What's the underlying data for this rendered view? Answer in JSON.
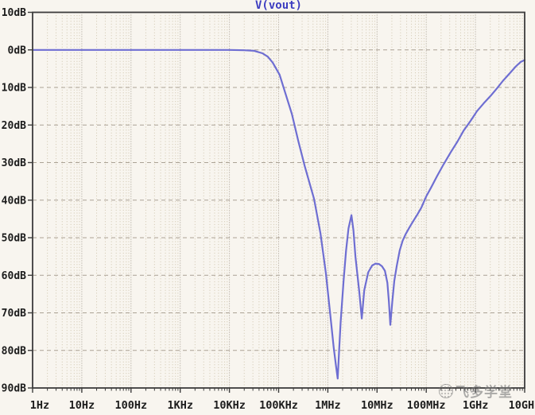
{
  "title": {
    "text": "V(vout)",
    "color": "#3c3cc0"
  },
  "watermark": {
    "text": "飞多学堂",
    "logo": "circle-badge-logo"
  },
  "colors": {
    "background": "#f8f5ef",
    "plot_border": "#3c3c3c",
    "grid_minor": "#cfc5ad",
    "grid_major": "#a49b8d",
    "grid_horizontal": "#aba295",
    "tick": "#3c3c3c",
    "label": "#1c1c1c",
    "curve": "#6e6ed2"
  },
  "chart_data": {
    "type": "line",
    "title": "V(vout)",
    "x_axis": {
      "scale": "log",
      "unit": "Hz",
      "tick_labels": [
        "1Hz",
        "10Hz",
        "100Hz",
        "1KHz",
        "10KHz",
        "100KHz",
        "1MHz",
        "10MHz",
        "100MHz",
        "1GHz",
        "10GHz"
      ],
      "tick_log10_hz": [
        0,
        1,
        2,
        3,
        4,
        5,
        6,
        7,
        8,
        9,
        10
      ],
      "range_log10_hz": [
        0,
        10
      ]
    },
    "y_axis": {
      "unit": "dB",
      "tick_labels": [
        "10dB",
        "0dB",
        "-10dB",
        "-20dB",
        "-30dB",
        "-40dB",
        "-50dB",
        "-60dB",
        "-70dB",
        "-80dB",
        "-90dB"
      ],
      "tick_values": [
        10,
        0,
        -10,
        -20,
        -30,
        -40,
        -50,
        -60,
        -70,
        -80,
        -90
      ],
      "range_db": [
        -90,
        10
      ]
    },
    "grid": "dotted-log-grid",
    "legend_position": "top-center",
    "series": [
      {
        "name": "V(vout)",
        "color": "#6e6ed2",
        "points_log10hz_db": [
          [
            0,
            0
          ],
          [
            0.6,
            0
          ],
          [
            1.2,
            0
          ],
          [
            1.8,
            0
          ],
          [
            2.4,
            0
          ],
          [
            3.0,
            0
          ],
          [
            3.6,
            0
          ],
          [
            4.0,
            0
          ],
          [
            4.3,
            -0.1
          ],
          [
            4.5,
            -0.25
          ],
          [
            4.67,
            -0.9
          ],
          [
            4.78,
            -1.8
          ],
          [
            4.88,
            -3.4
          ],
          [
            5.02,
            -6.6
          ],
          [
            5.12,
            -10.8
          ],
          [
            5.27,
            -17.1
          ],
          [
            5.4,
            -24.3
          ],
          [
            5.53,
            -30.9
          ],
          [
            5.72,
            -39.7
          ],
          [
            5.85,
            -48.8
          ],
          [
            5.96,
            -59.4
          ],
          [
            6.04,
            -69.3
          ],
          [
            6.12,
            -79.3
          ],
          [
            6.17,
            -84.5
          ],
          [
            6.2,
            -87.5
          ],
          [
            6.23,
            -80
          ],
          [
            6.26,
            -72.5
          ],
          [
            6.32,
            -61.5
          ],
          [
            6.37,
            -53.5
          ],
          [
            6.42,
            -47.5
          ],
          [
            6.48,
            -44
          ],
          [
            6.52,
            -48
          ],
          [
            6.56,
            -55
          ],
          [
            6.64,
            -64.5
          ],
          [
            6.69,
            -71.5
          ],
          [
            6.74,
            -64
          ],
          [
            6.82,
            -59.2
          ],
          [
            6.9,
            -57.4
          ],
          [
            6.97,
            -56.9
          ],
          [
            7.04,
            -57
          ],
          [
            7.1,
            -57.6
          ],
          [
            7.16,
            -58.8
          ],
          [
            7.21,
            -62
          ],
          [
            7.24,
            -67
          ],
          [
            7.27,
            -73.2
          ],
          [
            7.31,
            -67
          ],
          [
            7.35,
            -61.5
          ],
          [
            7.4,
            -57.5
          ],
          [
            7.46,
            -53.4
          ],
          [
            7.52,
            -50.8
          ],
          [
            7.58,
            -49.1
          ],
          [
            7.66,
            -47.2
          ],
          [
            7.74,
            -45.5
          ],
          [
            7.82,
            -43.8
          ],
          [
            7.9,
            -42
          ],
          [
            8.0,
            -39
          ],
          [
            8.1,
            -36.6
          ],
          [
            8.22,
            -33.6
          ],
          [
            8.35,
            -30.5
          ],
          [
            8.5,
            -27.2
          ],
          [
            8.63,
            -24.5
          ],
          [
            8.76,
            -21.5
          ],
          [
            8.9,
            -18.9
          ],
          [
            9.03,
            -16.3
          ],
          [
            9.17,
            -14.2
          ],
          [
            9.31,
            -12.2
          ],
          [
            9.44,
            -10.2
          ],
          [
            9.56,
            -8.2
          ],
          [
            9.7,
            -6.2
          ],
          [
            9.82,
            -4.4
          ],
          [
            9.92,
            -3.2
          ],
          [
            10,
            -2.7
          ]
        ]
      }
    ]
  }
}
